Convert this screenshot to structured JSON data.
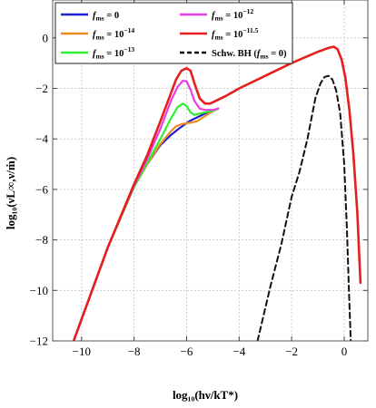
{
  "chart_data": {
    "type": "line",
    "xlabel": "log₁₀(hν/kT*)",
    "ylabel": "log₁₀(νL∞,ν/ṁ)",
    "xlim": [
      -11.1,
      0.9
    ],
    "ylim": [
      -12,
      1.5
    ],
    "xticks": [
      -10,
      -8,
      -6,
      -4,
      -2,
      0
    ],
    "yticks": [
      -12,
      -10,
      -8,
      -6,
      -4,
      -2,
      0
    ],
    "xtick_labels": [
      "−10",
      "−8",
      "−6",
      "−4",
      "−2",
      "0"
    ],
    "ytick_labels": [
      "−12",
      "−10",
      "−8",
      "−6",
      "−4",
      "−2",
      "0"
    ],
    "grid": true,
    "legend_position": "top-left",
    "series": [
      {
        "name": "fms = 0",
        "label_main": "f",
        "label_sub": "ms",
        "label_rest": " = 0",
        "label_sup": "",
        "color": "#1f1fd6",
        "dash": false,
        "width": 2.2,
        "x": [
          -10.3,
          -9,
          -8,
          -7.5,
          -7,
          -6.6,
          -6.3,
          -6.1,
          -5.9,
          -5.7,
          -5.5,
          -5.3,
          -5.0,
          -4.8
        ],
        "y": [
          -12,
          -8.3,
          -5.9,
          -5.0,
          -4.25,
          -3.85,
          -3.6,
          -3.45,
          -3.3,
          -3.2,
          -3.1,
          -3.0,
          -2.9,
          -2.8
        ]
      },
      {
        "name": "fms = 10^-14",
        "label_main": "f",
        "label_sub": "ms",
        "label_rest": " = 10",
        "label_sup": "−14",
        "color": "#f08c1e",
        "dash": false,
        "width": 2.2,
        "x": [
          -10.3,
          -9,
          -8,
          -7.5,
          -7,
          -6.6,
          -6.4,
          -6.2,
          -6.0,
          -5.8,
          -5.6,
          -5.3,
          -5.0,
          -4.8
        ],
        "y": [
          -12,
          -8.3,
          -5.9,
          -5.0,
          -4.2,
          -3.7,
          -3.5,
          -3.42,
          -3.38,
          -3.35,
          -3.3,
          -3.1,
          -2.9,
          -2.8
        ]
      },
      {
        "name": "fms = 10^-13",
        "label_main": "f",
        "label_sub": "ms",
        "label_rest": " = 10",
        "label_sup": "−13",
        "color": "#2ef02e",
        "dash": false,
        "width": 2.2,
        "x": [
          -10.3,
          -9,
          -8,
          -7.5,
          -7,
          -6.6,
          -6.35,
          -6.15,
          -6.0,
          -5.85,
          -5.7,
          -5.5,
          -5.3,
          -5.0,
          -4.8
        ],
        "y": [
          -12,
          -8.3,
          -5.9,
          -4.95,
          -4.0,
          -3.2,
          -2.75,
          -2.6,
          -2.7,
          -2.95,
          -3.05,
          -3.0,
          -2.95,
          -2.88,
          -2.8
        ]
      },
      {
        "name": "fms = 10^-12",
        "label_main": "f",
        "label_sub": "ms",
        "label_rest": " = 10",
        "label_sup": "−12",
        "color": "#e83ee8",
        "dash": false,
        "width": 2.2,
        "x": [
          -10.3,
          -9,
          -8,
          -7.5,
          -7,
          -6.6,
          -6.35,
          -6.15,
          -6.0,
          -5.85,
          -5.7,
          -5.5,
          -5.3,
          -5.0,
          -4.8
        ],
        "y": [
          -12,
          -8.3,
          -5.85,
          -4.8,
          -3.6,
          -2.5,
          -1.95,
          -1.7,
          -1.72,
          -2.05,
          -2.5,
          -2.8,
          -2.85,
          -2.85,
          -2.8
        ]
      },
      {
        "name": "fms = 10^-11.5",
        "label_main": "f",
        "label_sub": "ms",
        "label_rest": " = 10",
        "label_sup": "−11.5",
        "color": "#e61e1e",
        "dash": false,
        "width": 2.6,
        "x": [
          -10.3,
          -9,
          -8,
          -7.5,
          -7,
          -6.6,
          -6.4,
          -6.2,
          -6.0,
          -5.85,
          -5.7,
          -5.5,
          -5.3,
          -5.1,
          -5.0,
          -4.5,
          -4.0,
          -3.0,
          -2.0,
          -1.0,
          -0.6,
          -0.4,
          -0.25,
          -0.1,
          0.05,
          0.2,
          0.35,
          0.5,
          0.62
        ],
        "y": [
          -12,
          -8.3,
          -5.8,
          -4.65,
          -3.3,
          -2.2,
          -1.65,
          -1.3,
          -1.2,
          -1.3,
          -1.8,
          -2.4,
          -2.6,
          -2.6,
          -2.55,
          -2.3,
          -2.0,
          -1.5,
          -1.0,
          -0.55,
          -0.4,
          -0.35,
          -0.45,
          -0.85,
          -1.6,
          -2.9,
          -4.6,
          -6.9,
          -9.7
        ]
      },
      {
        "name": "Schw. BH (fms = 0)",
        "label_main": "Schw. BH (",
        "label_sub": "",
        "label_rest": "",
        "label_sup": "",
        "label_full": "Schw. BH (fms = 0)",
        "color": "#111111",
        "dash": true,
        "width": 2.0,
        "x": [
          -3.3,
          -2.8,
          -2.4,
          -2.0,
          -1.7,
          -1.4,
          -1.1,
          -0.9,
          -0.75,
          -0.6,
          -0.45,
          -0.3,
          -0.15,
          0.0,
          0.1,
          0.18,
          0.25
        ],
        "y": [
          -12,
          -9.8,
          -8.2,
          -6.3,
          -5.3,
          -4.0,
          -2.4,
          -1.8,
          -1.55,
          -1.5,
          -1.65,
          -2.1,
          -3.0,
          -5.0,
          -7.5,
          -10.0,
          -12.0
        ]
      }
    ]
  }
}
